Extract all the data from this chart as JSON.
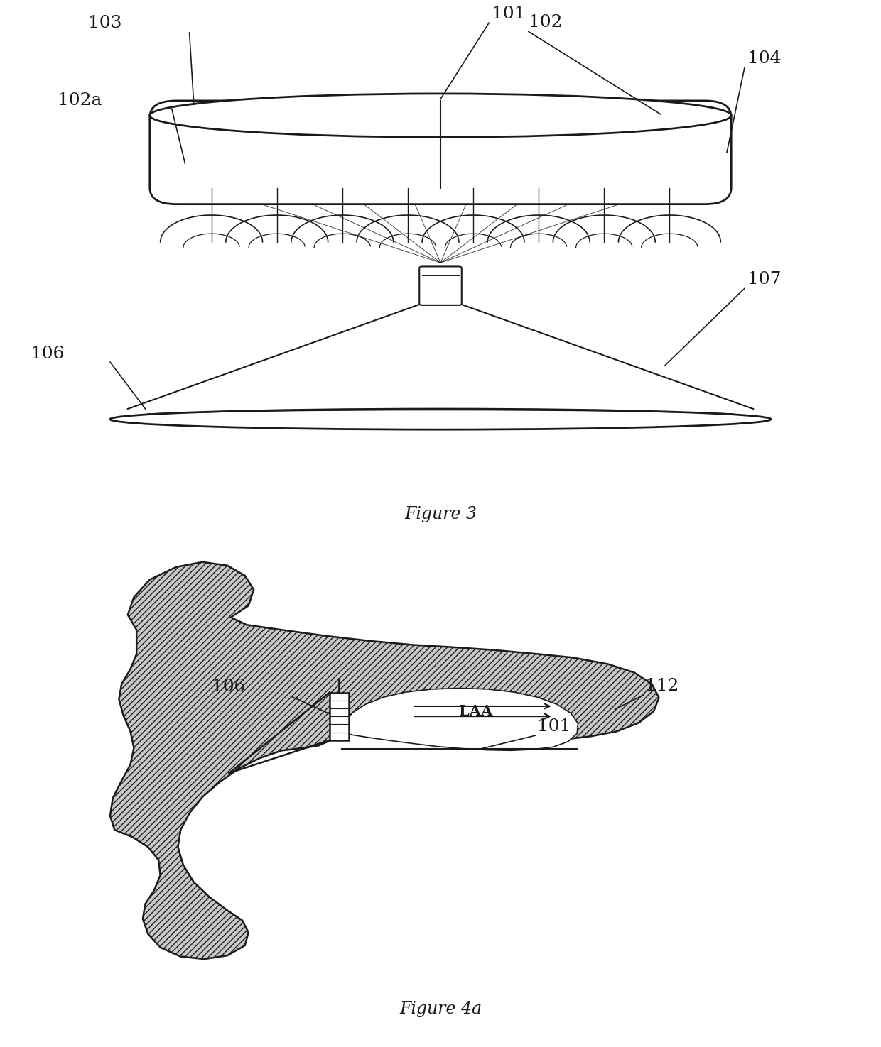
{
  "fig3_caption": "Figure 3",
  "fig4a_caption": "Figure 4a",
  "bg_color": "#ffffff",
  "line_color": "#1a1a1a",
  "text_color": "#1a1a1a",
  "ann_fs": 18,
  "lw_ann": 1.2
}
